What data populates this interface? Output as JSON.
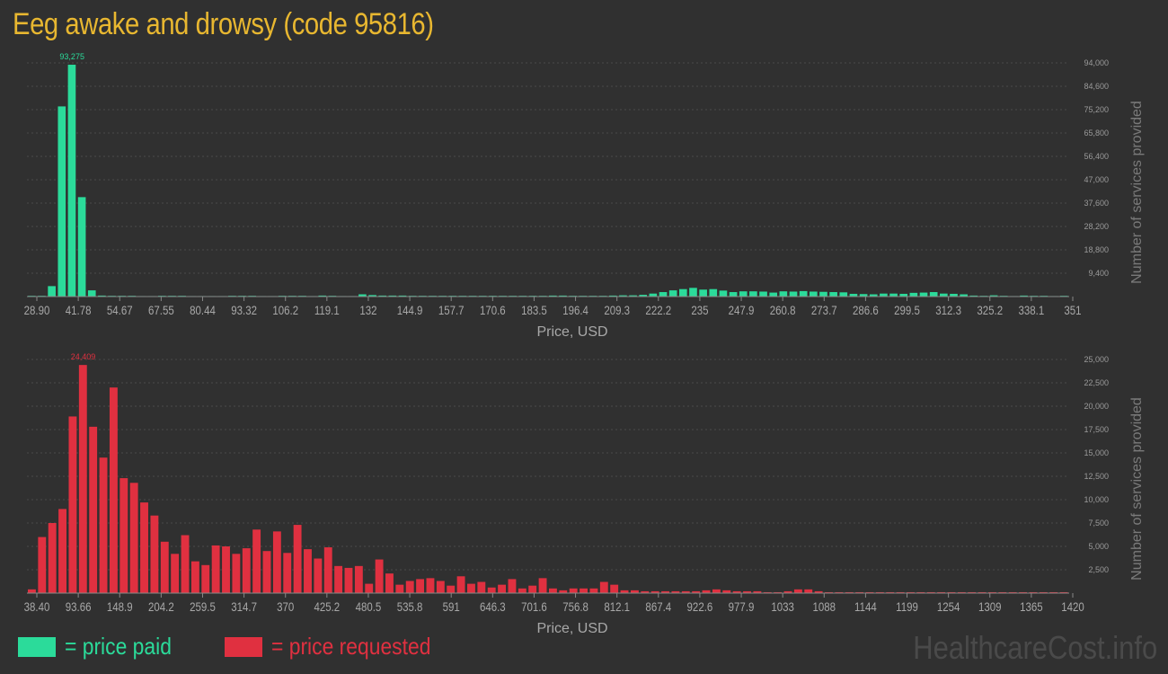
{
  "page": {
    "title": "Eeg awake and drowsy (code 95816)",
    "watermark": "HealthcareCost.info"
  },
  "legend": {
    "paid_label": "= price paid",
    "requested_label": "= price requested",
    "paid_color": "#2bdb9a",
    "requested_color": "#e03040"
  },
  "chart_data": [
    {
      "type": "bar",
      "xlabel": "Price, USD",
      "ylabel": "Number of services provided",
      "color": "#2bdb9a",
      "peak_label": "93,275",
      "ylim": [
        0,
        94000
      ],
      "yticks": [
        "94,000",
        "84,600",
        "75,200",
        "65,800",
        "56,400",
        "47,000",
        "37,600",
        "28,200",
        "18,800",
        "9,400"
      ],
      "ytick_values": [
        94000,
        84600,
        75200,
        65800,
        56400,
        47000,
        37600,
        28200,
        18800,
        9400
      ],
      "xticks": [
        "28.90",
        "41.78",
        "54.67",
        "67.55",
        "80.44",
        "93.32",
        "106.2",
        "119.1",
        "132",
        "144.9",
        "157.7",
        "170.6",
        "183.5",
        "196.4",
        "209.3",
        "222.2",
        "235",
        "247.9",
        "260.8",
        "273.7",
        "286.6",
        "299.5",
        "312.3",
        "325.2",
        "338.1",
        "351"
      ],
      "values": [
        300,
        300,
        4200,
        76500,
        93275,
        40000,
        2500,
        400,
        300,
        300,
        300,
        200,
        200,
        300,
        300,
        300,
        200,
        200,
        200,
        200,
        300,
        300,
        300,
        200,
        200,
        300,
        300,
        300,
        200,
        400,
        300,
        200,
        200,
        900,
        600,
        400,
        400,
        400,
        300,
        300,
        300,
        300,
        300,
        300,
        300,
        300,
        300,
        300,
        300,
        300,
        300,
        300,
        400,
        400,
        300,
        300,
        300,
        300,
        400,
        500,
        500,
        700,
        1200,
        1800,
        2500,
        3000,
        3500,
        2800,
        3000,
        2400,
        1800,
        2100,
        2100,
        2000,
        1600,
        2100,
        2000,
        2200,
        2000,
        1900,
        1800,
        1700,
        1100,
        1000,
        900,
        1200,
        1200,
        1100,
        1500,
        1600,
        1800,
        1200,
        1100,
        900,
        400,
        300,
        500,
        300,
        200,
        400,
        300,
        300,
        200,
        300
      ]
    },
    {
      "type": "bar",
      "xlabel": "Price, USD",
      "ylabel": "Number of services provided",
      "color": "#e03040",
      "peak_label": "24,409",
      "ylim": [
        0,
        25000
      ],
      "yticks": [
        "25,000",
        "22,500",
        "20,000",
        "17,500",
        "15,000",
        "12,500",
        "10,000",
        "7,500",
        "5,000",
        "2,500"
      ],
      "ytick_values": [
        25000,
        22500,
        20000,
        17500,
        15000,
        12500,
        10000,
        7500,
        5000,
        2500
      ],
      "xticks": [
        "38.40",
        "93.66",
        "148.9",
        "204.2",
        "259.5",
        "314.7",
        "370",
        "425.2",
        "480.5",
        "535.8",
        "591",
        "646.3",
        "701.6",
        "756.8",
        "812.1",
        "867.4",
        "922.6",
        "977.9",
        "1033",
        "1088",
        "1144",
        "1199",
        "1254",
        "1309",
        "1365",
        "1420"
      ],
      "values": [
        400,
        6000,
        7500,
        9000,
        18900,
        24409,
        17800,
        14500,
        22000,
        12300,
        11800,
        9700,
        8300,
        5500,
        4200,
        6200,
        3400,
        3000,
        5100,
        5000,
        4200,
        4800,
        6800,
        4500,
        6600,
        4300,
        7300,
        4700,
        3700,
        4900,
        2900,
        2700,
        2900,
        1000,
        3600,
        2100,
        900,
        1300,
        1500,
        1600,
        1300,
        800,
        1800,
        1000,
        1200,
        600,
        900,
        1500,
        500,
        800,
        1600,
        500,
        300,
        500,
        500,
        500,
        1200,
        900,
        300,
        300,
        200,
        200,
        200,
        200,
        200,
        200,
        300,
        400,
        300,
        200,
        200,
        200,
        100,
        100,
        200,
        400,
        400,
        200,
        100,
        100,
        100,
        100,
        100,
        100,
        100,
        100,
        100,
        100,
        100,
        100,
        100,
        100,
        100,
        100,
        100,
        100,
        100,
        100,
        100,
        100,
        100,
        100
      ]
    }
  ]
}
